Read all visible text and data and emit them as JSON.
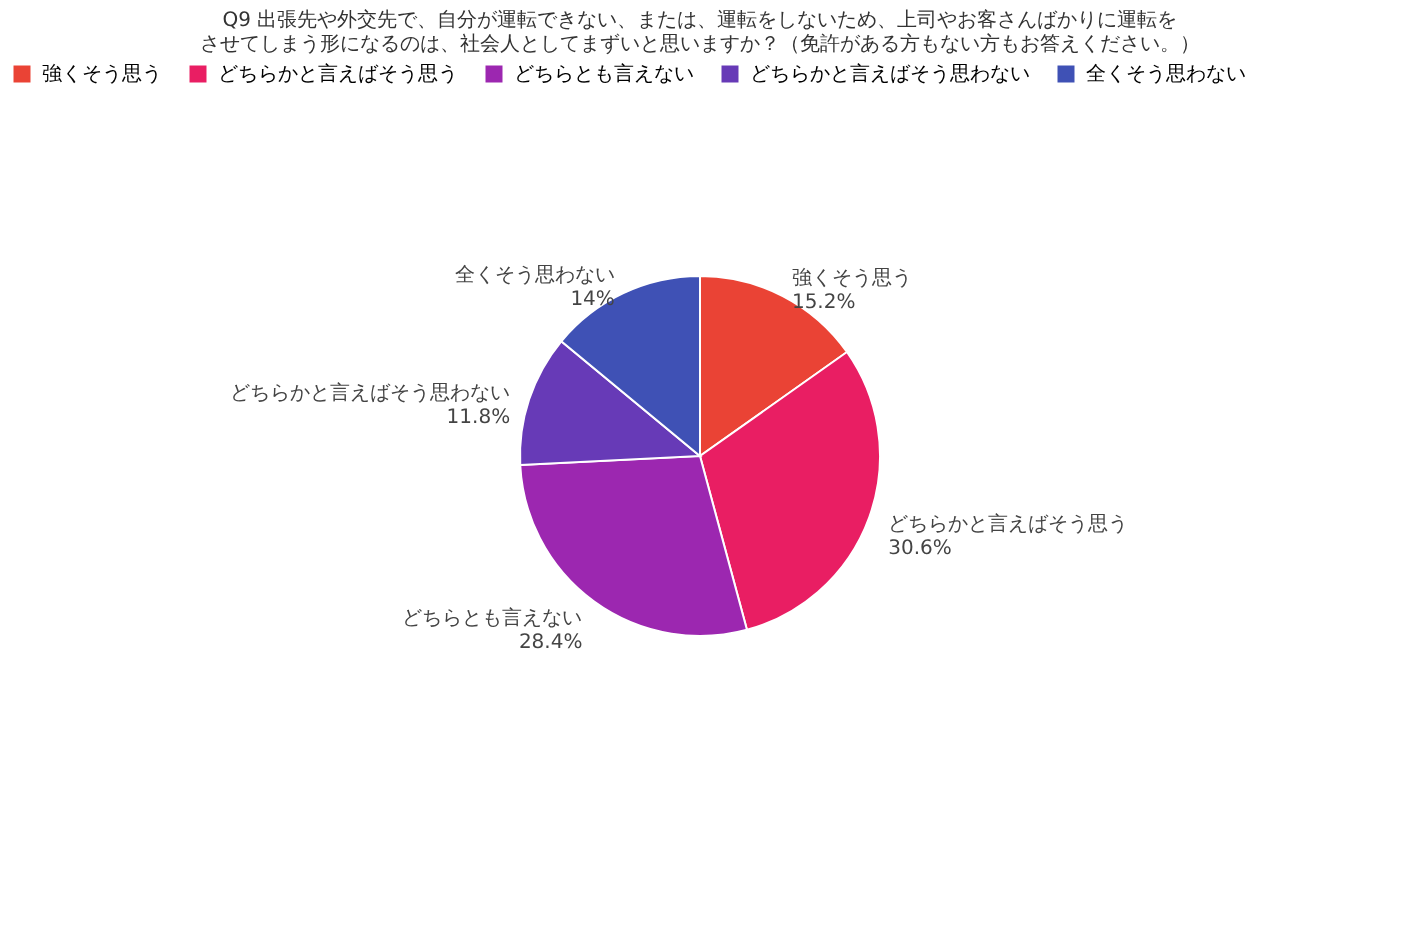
{
  "chart_data": {
    "type": "pie",
    "title": "Q9 出張先や外交先で、自分が運転できない、または、運転をしないため、上司やお客さんばかりに運転をさせてしまう形になるのは、社会人としてまずいと思いますか？（免許がある方もない方もお答えください。）",
    "categories": [
      "強くそう思う",
      "どちらかと言えばそう思う",
      "どちらとも言えない",
      "どちらかと言えばそう思わない",
      "全くそう思わない"
    ],
    "values": [
      15.2,
      30.6,
      28.4,
      11.8,
      14
    ],
    "value_labels": [
      "15.2%",
      "30.6%",
      "28.4%",
      "11.8%",
      "14%"
    ],
    "colors": [
      "#ea4335",
      "#e91e63",
      "#9c27b0",
      "#673ab7",
      "#3f51b5"
    ],
    "legend": "top"
  }
}
